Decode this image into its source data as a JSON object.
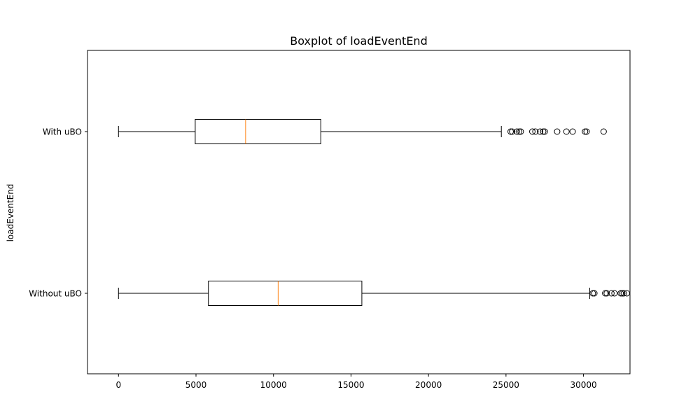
{
  "chart_data": {
    "type": "boxplot",
    "orientation": "horizontal",
    "title": "Boxplot of loadEventEnd",
    "xlabel": "",
    "ylabel": "loadEventEnd",
    "xlim": [
      -2000,
      33000
    ],
    "xticks": [
      0,
      5000,
      10000,
      15000,
      20000,
      25000,
      30000
    ],
    "grid": false,
    "categories": [
      "Without uBO",
      "With uBO"
    ],
    "boxes": [
      {
        "label": "Without uBO",
        "whisker_low": 0,
        "q1": 5800,
        "median": 10300,
        "q3": 15700,
        "whisker_high": 30400,
        "outliers": [
          30600,
          30700,
          31400,
          31500,
          31800,
          32000,
          32400,
          32500,
          32600,
          32800
        ]
      },
      {
        "label": "With uBO",
        "whisker_low": 0,
        "q1": 4950,
        "median": 8200,
        "q3": 13050,
        "whisker_high": 24700,
        "outliers": [
          25300,
          25400,
          25700,
          25850,
          25950,
          26700,
          26900,
          27200,
          27400,
          27500,
          28300,
          28900,
          29300,
          30100,
          30200,
          31300
        ]
      }
    ],
    "colors": {
      "box": "#000000",
      "median": "#ff7f0e",
      "outlier": "#000000"
    }
  }
}
